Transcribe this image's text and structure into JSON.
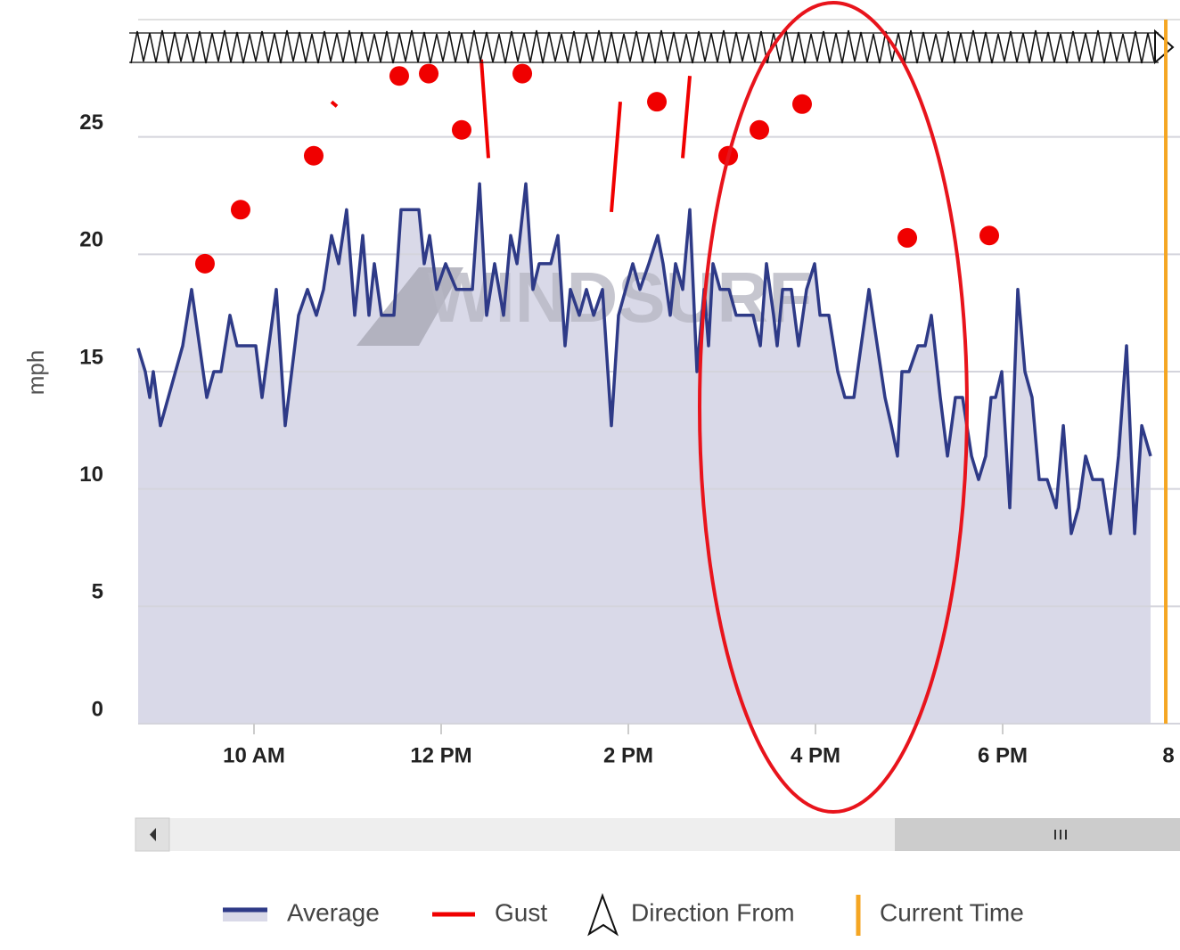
{
  "chart_data": {
    "type": "area",
    "y_label": "mph",
    "watermark": "WINDSURF",
    "ylim": [
      0,
      30
    ],
    "yticks": [
      0,
      5,
      10,
      15,
      20,
      25
    ],
    "xlim": [
      8.762,
      19.895
    ],
    "xticks": [
      {
        "value": 10,
        "label": "10 AM"
      },
      {
        "value": 12,
        "label": "12 PM"
      },
      {
        "value": 14,
        "label": "2 PM"
      },
      {
        "value": 16,
        "label": "4 PM"
      },
      {
        "value": 18,
        "label": "6 PM"
      },
      {
        "value": 20,
        "label": "8"
      }
    ],
    "grid": true,
    "current_time": 19.743,
    "current_time_color": "#f5a623",
    "series": [
      {
        "name": "Average",
        "color": "#2e3a87",
        "fill": "#d9d9e8",
        "x": [
          8.762,
          8.838,
          8.886,
          8.924,
          9.0,
          9.238,
          9.333,
          9.495,
          9.571,
          9.648,
          9.743,
          9.819,
          10.019,
          10.086,
          10.238,
          10.333,
          10.476,
          10.571,
          10.667,
          10.743,
          10.829,
          10.905,
          10.99,
          11.076,
          11.162,
          11.229,
          11.286,
          11.362,
          11.438,
          11.495,
          11.571,
          11.762,
          11.819,
          11.876,
          11.952,
          12.048,
          12.162,
          12.333,
          12.41,
          12.486,
          12.571,
          12.667,
          12.743,
          12.81,
          12.905,
          12.981,
          13.048,
          13.171,
          13.248,
          13.324,
          13.381,
          13.476,
          13.552,
          13.629,
          13.724,
          13.819,
          13.895,
          14.048,
          14.124,
          14.219,
          14.314,
          14.371,
          14.448,
          14.505,
          14.581,
          14.657,
          14.733,
          14.81,
          14.857,
          14.905,
          14.981,
          15.076,
          15.152,
          15.333,
          15.41,
          15.476,
          15.552,
          15.59,
          15.648,
          15.743,
          15.819,
          15.905,
          15.99,
          16.048,
          16.143,
          16.238,
          16.314,
          16.41,
          16.571,
          16.743,
          16.81,
          16.876,
          16.924,
          17.0,
          17.095,
          17.171,
          17.238,
          17.333,
          17.41,
          17.495,
          17.571,
          17.667,
          17.743,
          17.819,
          17.876,
          17.924,
          17.99,
          18.076,
          18.162,
          18.238,
          18.314,
          18.39,
          18.476,
          18.571,
          18.648,
          18.733,
          18.81,
          18.886,
          18.962,
          19.067,
          19.152,
          19.238,
          19.324,
          19.41,
          19.486,
          19.581
        ],
        "values": [
          16.0,
          15.0,
          13.9,
          15.0,
          12.7,
          16.1,
          18.5,
          13.9,
          15.0,
          15.0,
          17.4,
          16.1,
          16.1,
          13.9,
          18.5,
          12.7,
          17.4,
          18.5,
          17.4,
          18.5,
          20.8,
          19.6,
          21.9,
          17.4,
          20.8,
          17.4,
          19.6,
          17.4,
          17.4,
          17.4,
          21.9,
          21.9,
          19.6,
          20.8,
          18.5,
          19.6,
          18.5,
          18.5,
          23.0,
          17.4,
          19.6,
          17.4,
          20.8,
          19.6,
          23.0,
          18.5,
          19.6,
          19.6,
          20.8,
          16.1,
          18.5,
          17.4,
          18.5,
          17.4,
          18.5,
          12.7,
          17.4,
          19.6,
          18.5,
          19.6,
          20.8,
          19.6,
          17.4,
          19.6,
          18.5,
          21.9,
          15.0,
          18.5,
          16.1,
          19.6,
          18.5,
          18.5,
          17.4,
          17.4,
          16.1,
          19.6,
          17.4,
          16.1,
          18.5,
          18.5,
          16.1,
          18.5,
          19.6,
          17.4,
          17.4,
          15.0,
          13.9,
          13.9,
          18.5,
          13.9,
          12.7,
          11.4,
          15.0,
          15.0,
          16.1,
          16.1,
          17.4,
          13.9,
          11.4,
          13.9,
          13.9,
          11.4,
          10.4,
          11.4,
          13.9,
          13.9,
          15.0,
          9.2,
          18.5,
          15.0,
          13.9,
          10.4,
          10.4,
          9.2,
          12.7,
          8.1,
          9.2,
          11.4,
          10.4,
          10.4,
          8.1,
          11.4,
          16.1,
          8.1,
          12.7,
          11.4
        ]
      },
      {
        "name": "Gust",
        "color": "#f00000",
        "x": [
          9.476,
          null,
          9.857,
          null,
          10.638,
          null,
          10.829,
          10.886,
          null,
          11.552,
          null,
          11.867,
          null,
          12.219,
          null,
          12.429,
          12.505,
          null,
          12.867,
          null,
          13.819,
          13.914,
          null,
          14.305,
          null,
          14.581,
          14.657,
          null,
          15.067,
          null,
          15.4,
          null,
          15.857,
          null,
          16.981,
          null,
          17.857
        ],
        "values": [
          19.6,
          null,
          21.9,
          null,
          24.2,
          null,
          26.5,
          26.3,
          null,
          27.6,
          null,
          27.7,
          null,
          25.3,
          null,
          28.3,
          24.1,
          null,
          27.7,
          null,
          21.8,
          26.5,
          null,
          26.5,
          null,
          24.1,
          27.6,
          null,
          24.2,
          null,
          25.3,
          null,
          26.4,
          null,
          20.7,
          null,
          20.8
        ]
      }
    ],
    "legend_extra": [
      "Direction From",
      "Current Time"
    ]
  }
}
